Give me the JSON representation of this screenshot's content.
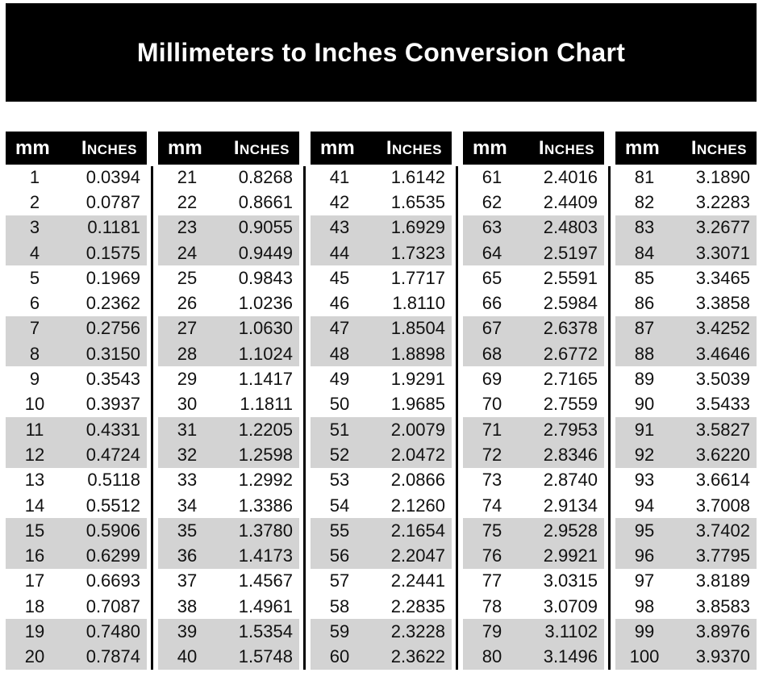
{
  "title": "Millimeters to Inches Conversion Chart",
  "column_headers": {
    "mm": "mm",
    "inches": "Inches"
  },
  "colors": {
    "page_bg": "#ffffff",
    "banner_bg": "#000000",
    "banner_text": "#ffffff",
    "header_bg": "#000000",
    "header_text": "#ffffff",
    "row_shaded": "#d3d3d3",
    "row_plain": "#ffffff",
    "divider": "#000000",
    "text": "#111111"
  },
  "chart_data": {
    "type": "table",
    "title": "Millimeters to Inches Conversion Chart",
    "columns": [
      "mm",
      "Inches"
    ],
    "layout": {
      "tables": 5,
      "rows_per_table": 20,
      "row_shading": "rows shaded gray in alternating pairs (rows 3-4, 7-8, 11-12, 15-16, 19-20 of each table)",
      "grid": "off",
      "legend": "none"
    },
    "series": [
      {
        "name": "mm",
        "values": [
          1,
          2,
          3,
          4,
          5,
          6,
          7,
          8,
          9,
          10,
          11,
          12,
          13,
          14,
          15,
          16,
          17,
          18,
          19,
          20,
          21,
          22,
          23,
          24,
          25,
          26,
          27,
          28,
          29,
          30,
          31,
          32,
          33,
          34,
          35,
          36,
          37,
          38,
          39,
          40,
          41,
          42,
          43,
          44,
          45,
          46,
          47,
          48,
          49,
          50,
          51,
          52,
          53,
          54,
          55,
          56,
          57,
          58,
          59,
          60,
          61,
          62,
          63,
          64,
          65,
          66,
          67,
          68,
          69,
          70,
          71,
          72,
          73,
          74,
          75,
          76,
          77,
          78,
          79,
          80,
          81,
          82,
          83,
          84,
          85,
          86,
          87,
          88,
          89,
          90,
          91,
          92,
          93,
          94,
          95,
          96,
          97,
          98,
          99,
          100
        ]
      },
      {
        "name": "inches",
        "values": [
          "0.0394",
          "0.0787",
          "0.1181",
          "0.1575",
          "0.1969",
          "0.2362",
          "0.2756",
          "0.3150",
          "0.3543",
          "0.3937",
          "0.4331",
          "0.4724",
          "0.5118",
          "0.5512",
          "0.5906",
          "0.6299",
          "0.6693",
          "0.7087",
          "0.7480",
          "0.7874",
          "0.8268",
          "0.8661",
          "0.9055",
          "0.9449",
          "0.9843",
          "1.0236",
          "1.0630",
          "1.1024",
          "1.1417",
          "1.1811",
          "1.2205",
          "1.2598",
          "1.2992",
          "1.3386",
          "1.3780",
          "1.4173",
          "1.4567",
          "1.4961",
          "1.5354",
          "1.5748",
          "1.6142",
          "1.6535",
          "1.6929",
          "1.7323",
          "1.7717",
          "1.8110",
          "1.8504",
          "1.8898",
          "1.9291",
          "1.9685",
          "2.0079",
          "2.0472",
          "2.0866",
          "2.1260",
          "2.1654",
          "2.2047",
          "2.2441",
          "2.2835",
          "2.3228",
          "2.3622",
          "2.4016",
          "2.4409",
          "2.4803",
          "2.5197",
          "2.5591",
          "2.5984",
          "2.6378",
          "2.6772",
          "2.7165",
          "2.7559",
          "2.7953",
          "2.8346",
          "2.8740",
          "2.9134",
          "2.9528",
          "2.9921",
          "3.0315",
          "3.0709",
          "3.1102",
          "3.1496",
          "3.1890",
          "3.2283",
          "3.2677",
          "3.3071",
          "3.3465",
          "3.3858",
          "3.4252",
          "3.4646",
          "3.5039",
          "3.5433",
          "3.5827",
          "3.6220",
          "3.6614",
          "3.7008",
          "3.7402",
          "3.7795",
          "3.8189",
          "3.8583",
          "3.8976",
          "3.9370"
        ]
      }
    ]
  }
}
